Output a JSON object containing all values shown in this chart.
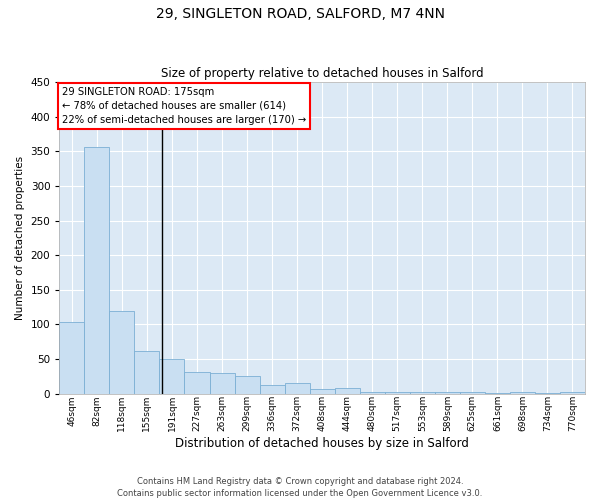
{
  "title": "29, SINGLETON ROAD, SALFORD, M7 4NN",
  "subtitle": "Size of property relative to detached houses in Salford",
  "xlabel": "Distribution of detached houses by size in Salford",
  "ylabel": "Number of detached properties",
  "bar_color": "#c9dff2",
  "bar_edge_color": "#7bafd4",
  "background_color": "#dce9f5",
  "grid_color": "#ffffff",
  "categories": [
    "46sqm",
    "82sqm",
    "118sqm",
    "155sqm",
    "191sqm",
    "227sqm",
    "263sqm",
    "299sqm",
    "336sqm",
    "372sqm",
    "408sqm",
    "444sqm",
    "480sqm",
    "517sqm",
    "553sqm",
    "589sqm",
    "625sqm",
    "661sqm",
    "698sqm",
    "734sqm",
    "770sqm"
  ],
  "values": [
    104,
    356,
    120,
    62,
    50,
    31,
    30,
    26,
    12,
    15,
    7,
    8,
    3,
    2,
    2,
    2,
    3,
    1,
    2,
    1,
    3
  ],
  "ylim": [
    0,
    450
  ],
  "yticks": [
    0,
    50,
    100,
    150,
    200,
    250,
    300,
    350,
    400,
    450
  ],
  "property_line_x": 3.62,
  "annotation_box_text": "29 SINGLETON ROAD: 175sqm\n← 78% of detached houses are smaller (614)\n22% of semi-detached houses are larger (170) →",
  "annotation_box_color": "white",
  "annotation_box_edge_color": "red",
  "annotation_line_color": "black",
  "footer_line1": "Contains HM Land Registry data © Crown copyright and database right 2024.",
  "footer_line2": "Contains public sector information licensed under the Open Government Licence v3.0."
}
